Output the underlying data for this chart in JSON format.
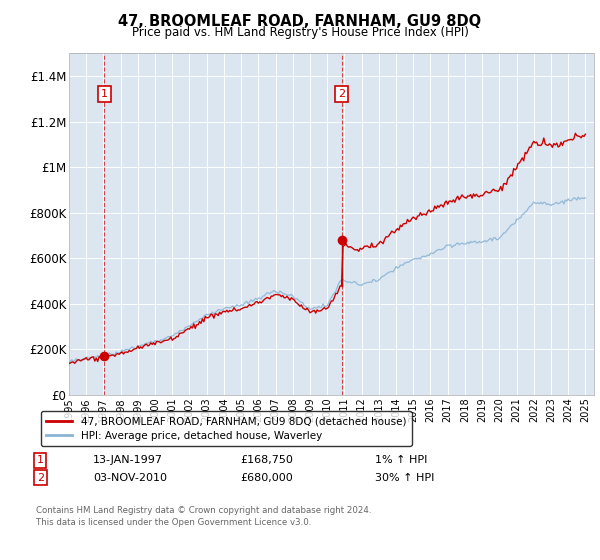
{
  "title": "47, BROOMLEAF ROAD, FARNHAM, GU9 8DQ",
  "subtitle": "Price paid vs. HM Land Registry's House Price Index (HPI)",
  "bg_color": "#dce6f1",
  "red_color": "#cc0000",
  "blue_color": "#8ab4d4",
  "legend_red": "47, BROOMLEAF ROAD, FARNHAM, GU9 8DQ (detached house)",
  "legend_blue": "HPI: Average price, detached house, Waverley",
  "sale1_x": 1997.04,
  "sale1_y": 168750,
  "sale1_date": "13-JAN-1997",
  "sale1_price": "£168,750",
  "sale1_hpi": "1% ↑ HPI",
  "sale2_x": 2010.84,
  "sale2_y": 680000,
  "sale2_date": "03-NOV-2010",
  "sale2_price": "£680,000",
  "sale2_hpi": "30% ↑ HPI",
  "ylim_lo": 0,
  "ylim_hi": 1500000,
  "xlim_lo": 1995.0,
  "xlim_hi": 2025.5,
  "yticks": [
    0,
    200000,
    400000,
    600000,
    800000,
    1000000,
    1200000,
    1400000
  ],
  "ytick_labels": [
    "£0",
    "£200K",
    "£400K",
    "£600K",
    "£800K",
    "£1M",
    "£1.2M",
    "£1.4M"
  ],
  "xticks": [
    1995,
    1996,
    1997,
    1998,
    1999,
    2000,
    2001,
    2002,
    2003,
    2004,
    2005,
    2006,
    2007,
    2008,
    2009,
    2010,
    2011,
    2012,
    2013,
    2014,
    2015,
    2016,
    2017,
    2018,
    2019,
    2020,
    2021,
    2022,
    2023,
    2024,
    2025
  ],
  "footer1": "Contains HM Land Registry data © Crown copyright and database right 2024.",
  "footer2": "This data is licensed under the Open Government Licence v3.0."
}
